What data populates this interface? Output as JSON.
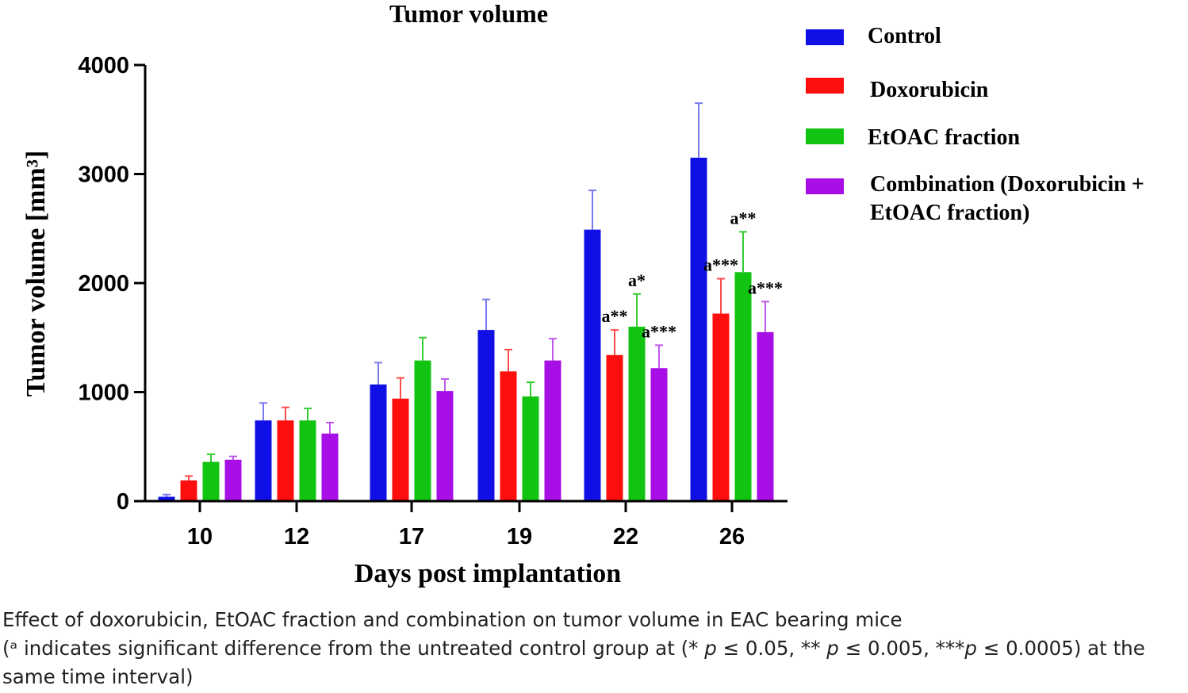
{
  "chart_data": {
    "type": "bar",
    "title": "Tumor volume",
    "xlabel": "Days post implantation",
    "ylabel": "Tumor volume [mm³]",
    "ylim": [
      0,
      4000
    ],
    "yticks": [
      "0",
      "1000",
      "2000",
      "3000",
      "4000"
    ],
    "categories": [
      "10",
      "12",
      "17",
      "19",
      "22",
      "26"
    ],
    "series": [
      {
        "name": "Control",
        "color": "#1010e6",
        "errColor": "#7a7af0",
        "values": [
          40,
          740,
          1070,
          1570,
          2490,
          3150
        ],
        "errors": [
          20,
          160,
          200,
          280,
          360,
          500
        ],
        "annotations": [
          "",
          "",
          "",
          "",
          "",
          ""
        ]
      },
      {
        "name": "Doxorubicin",
        "color": "#ff0e0e",
        "errColor": "#ff4a4a",
        "values": [
          190,
          740,
          940,
          1190,
          1340,
          1720
        ],
        "errors": [
          40,
          120,
          190,
          200,
          230,
          320
        ],
        "annotations": [
          "",
          "",
          "",
          "",
          "a**",
          "a***"
        ]
      },
      {
        "name": "EtOAC fraction",
        "color": "#12c412",
        "errColor": "#33cc33",
        "values": [
          360,
          740,
          1290,
          960,
          1600,
          2100
        ],
        "errors": [
          70,
          110,
          210,
          130,
          300,
          370
        ],
        "annotations": [
          "",
          "",
          "",
          "",
          "a*",
          "a**"
        ]
      },
      {
        "name": "Combination (Doxorubicin + EtOAC fraction)",
        "color": "#a80ee6",
        "errColor": "#bf5ae8",
        "values": [
          380,
          620,
          1010,
          1290,
          1220,
          1550
        ],
        "errors": [
          30,
          100,
          110,
          200,
          210,
          280
        ],
        "annotations": [
          "",
          "",
          "",
          "",
          "a***",
          "a***"
        ]
      }
    ]
  },
  "legend": {
    "items": [
      {
        "label": "Control",
        "color": "#1010e6"
      },
      {
        "label": "Doxorubicin",
        "color": "#ff0e0e"
      },
      {
        "label": "EtOAC fraction",
        "color": "#12c412"
      },
      {
        "label_line1": "Combination (Doxorubicin +",
        "label_line2": "EtOAC fraction)",
        "color": "#a80ee6"
      }
    ]
  },
  "caption": {
    "line1": "Effect of doxorubicin, EtOAC fraction and combination on tumor volume in EAC bearing mice",
    "line2_a": "(ᵃ indicates significant difference from the untreated control group at (* ",
    "p1": "p",
    "line2_b": " ≤ 0.05, ** ",
    "p2": "p",
    "line2_c": " ≤ 0.005, ***",
    "p3": "p",
    "line2_d": " ≤ 0.0005) at the",
    "line3": "same time interval)"
  }
}
